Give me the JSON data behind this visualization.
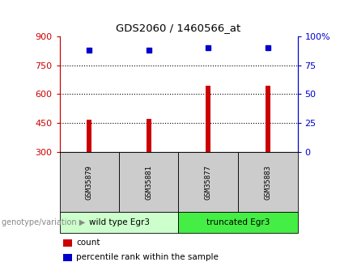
{
  "title": "GDS2060 / 1460566_at",
  "samples": [
    "GSM35879",
    "GSM35881",
    "GSM35877",
    "GSM35883"
  ],
  "bar_values": [
    468,
    472,
    645,
    645
  ],
  "percentile_values": [
    88,
    88,
    90,
    90
  ],
  "bar_color": "#cc0000",
  "dot_color": "#0000cc",
  "ylim_left": [
    300,
    900
  ],
  "ylim_right": [
    0,
    100
  ],
  "yticks_left": [
    300,
    450,
    600,
    750,
    900
  ],
  "yticks_right": [
    0,
    25,
    50,
    75,
    100
  ],
  "groups": [
    {
      "label": "wild type Egr3",
      "samples": [
        0,
        1
      ],
      "color": "#ccffcc"
    },
    {
      "label": "truncated Egr3",
      "samples": [
        2,
        3
      ],
      "color": "#44ee44"
    }
  ],
  "group_label": "genotype/variation",
  "legend_items": [
    {
      "label": "count",
      "color": "#cc0000"
    },
    {
      "label": "percentile rank within the sample",
      "color": "#0000cc"
    }
  ],
  "left_axis_color": "#cc0000",
  "right_axis_color": "#0000cc",
  "background_color": "#ffffff",
  "bar_bottom": 300,
  "sample_box_color": "#cccccc",
  "bar_width": 0.08
}
